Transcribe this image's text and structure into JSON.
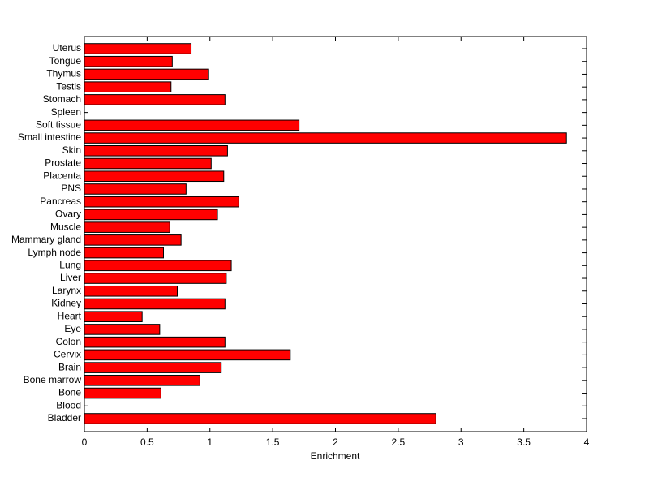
{
  "chart_data": {
    "type": "barh",
    "xlabel": "Enrichment",
    "categories": [
      "Bladder",
      "Blood",
      "Bone",
      "Bone marrow",
      "Brain",
      "Cervix",
      "Colon",
      "Eye",
      "Heart",
      "Kidney",
      "Larynx",
      "Liver",
      "Lung",
      "Lymph node",
      "Mammary gland",
      "Muscle",
      "Ovary",
      "Pancreas",
      "PNS",
      "Placenta",
      "Prostate",
      "Skin",
      "Small intestine",
      "Soft tissue",
      "Spleen",
      "Stomach",
      "Testis",
      "Thymus",
      "Tongue",
      "Uterus"
    ],
    "values": [
      2.8,
      0,
      0.61,
      0.92,
      1.09,
      1.64,
      1.12,
      0.6,
      0.46,
      1.12,
      0.74,
      1.13,
      1.17,
      0.63,
      0.77,
      0.68,
      1.06,
      1.23,
      0.81,
      1.11,
      1.01,
      1.14,
      3.84,
      1.71,
      0,
      1.12,
      0.69,
      0.99,
      0.7,
      0.85
    ],
    "color": "#ff0000",
    "xlim": [
      0,
      4
    ],
    "xticks": [
      0,
      0.5,
      1,
      1.5,
      2,
      2.5,
      3,
      3.5,
      4
    ],
    "grid": false
  }
}
